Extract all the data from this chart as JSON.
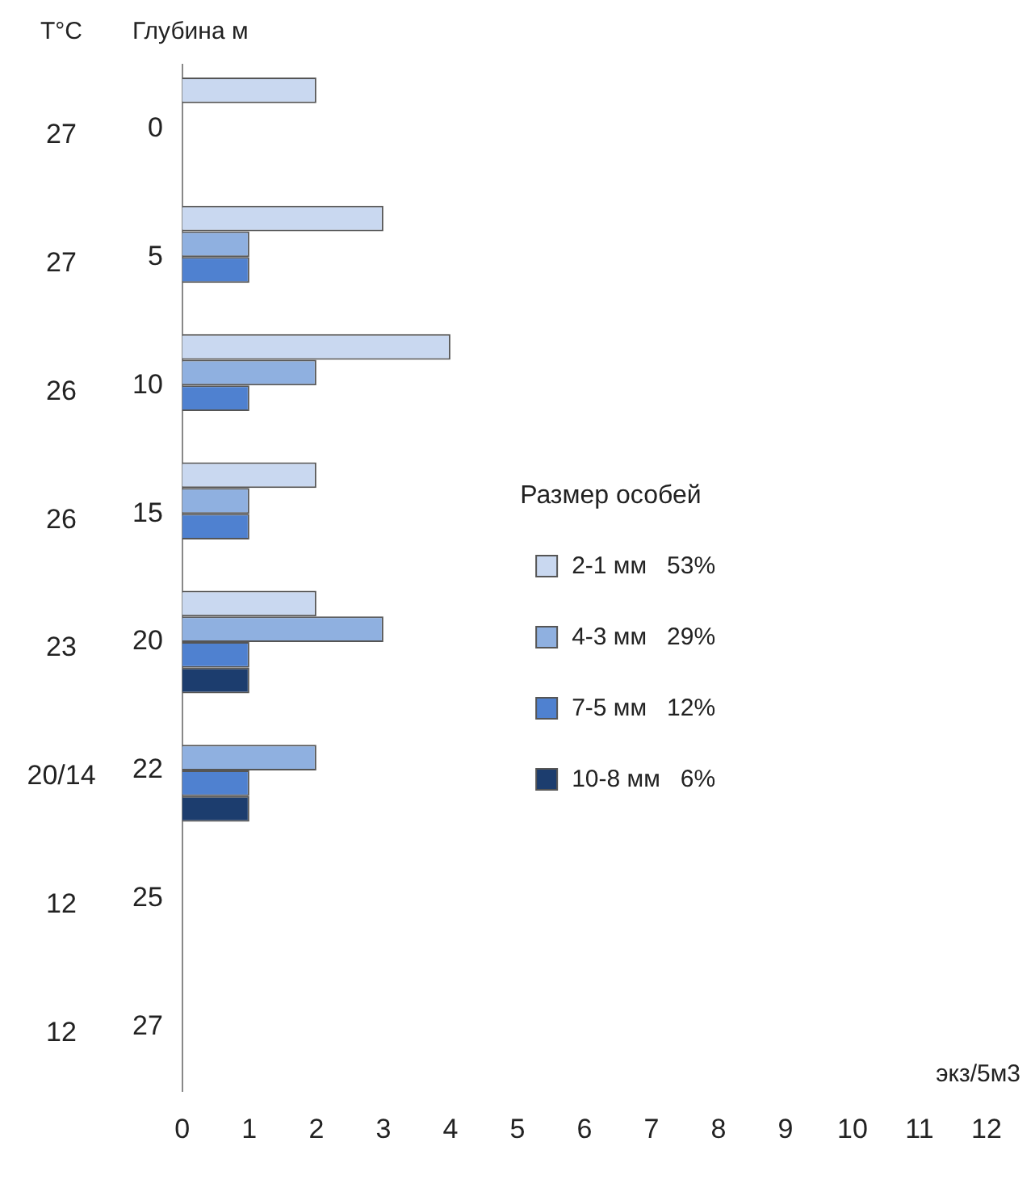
{
  "chart_data": {
    "type": "bar",
    "orientation": "horizontal",
    "ylabel": "Глубина м",
    "y2label": "T°C",
    "xlabel": "экз/5м3",
    "legend_title": "Размер особей",
    "legend": "right",
    "grid": false,
    "categories": [
      "0",
      "5",
      "10",
      "15",
      "20",
      "22",
      "25",
      "27"
    ],
    "y2_categories": [
      "27",
      "27",
      "26",
      "26",
      "23",
      "20/14",
      "12",
      "12"
    ],
    "xlim": [
      0,
      12
    ],
    "xticks": [
      0,
      1,
      2,
      3,
      4,
      5,
      6,
      7,
      8,
      9,
      10,
      11,
      12
    ],
    "series": [
      {
        "name": "2-1 мм   53%",
        "color": "#c9d8f0",
        "values": [
          2,
          3,
          4,
          2,
          2,
          null,
          null,
          null
        ]
      },
      {
        "name": "4-3 мм   29%",
        "color": "#8fb0e0",
        "values": [
          null,
          1,
          2,
          1,
          3,
          2,
          null,
          null
        ]
      },
      {
        "name": "7-5 мм   12%",
        "color": "#4f81d0",
        "values": [
          null,
          1,
          1,
          1,
          1,
          1,
          null,
          null
        ]
      },
      {
        "name": "10-8 мм   6%",
        "color": "#1c3d6e",
        "values": [
          null,
          null,
          null,
          null,
          1,
          1,
          null,
          null
        ]
      }
    ]
  }
}
